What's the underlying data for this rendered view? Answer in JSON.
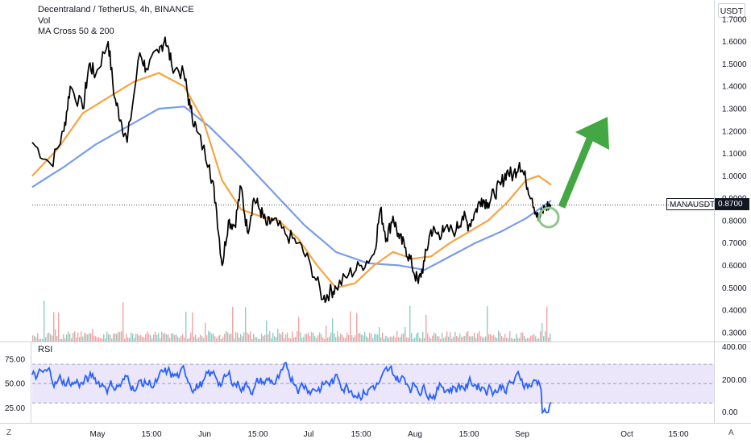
{
  "legend": {
    "title": "Decentraland / TetherUS, 4h, BINANCE",
    "vol": "Vol",
    "ma": "MA Cross 50 & 200"
  },
  "currency": "USDT",
  "symbol_tag": "MANAUSDT",
  "price_tag": "0.8700",
  "rsi_label": "RSI",
  "corner_left": "Z",
  "corner_right": "A",
  "colors": {
    "price": "#000000",
    "ma50": "#f7a440",
    "ma200": "#7a9de8",
    "rsi": "#2962ff",
    "rsi_band": "#ebe6fa",
    "arrow": "#43a843",
    "circle": "#8cc88c",
    "vol_up": "#8fcdc4",
    "vol_down": "#f2a3a3"
  },
  "chart_data": [
    {
      "type": "line",
      "title": "Decentraland / TetherUS, 4h, BINANCE",
      "x_ticks": [
        "May",
        "15:00",
        "Jun",
        "15:00",
        "Jul",
        "15:00",
        "Aug",
        "15:00",
        "Sep",
        "Oct",
        "15:00"
      ],
      "y_ticks": [
        "0.3000",
        "0.4000",
        "0.5000",
        "0.6000",
        "0.7000",
        "0.8000",
        "0.9000",
        "1.0000",
        "1.1000",
        "1.2000",
        "1.3000",
        "1.4000",
        "1.5000",
        "1.6000",
        "1.7000"
      ],
      "ylim": [
        0.26,
        1.75
      ],
      "last_price": 0.87,
      "series": [
        {
          "name": "MANAUSDT",
          "points": [
            [
              0,
              1.15
            ],
            [
              3,
              1.05
            ],
            [
              5,
              1.2
            ],
            [
              6,
              1.4
            ],
            [
              8,
              1.3
            ],
            [
              9,
              1.5
            ],
            [
              10,
              1.45
            ],
            [
              12,
              1.6
            ],
            [
              13,
              1.35
            ],
            [
              14,
              1.25
            ],
            [
              15,
              1.15
            ],
            [
              17,
              1.55
            ],
            [
              18,
              1.48
            ],
            [
              20,
              1.55
            ],
            [
              21,
              1.62
            ],
            [
              22,
              1.5
            ],
            [
              24,
              1.45
            ],
            [
              25,
              1.3
            ],
            [
              26,
              1.2
            ],
            [
              28,
              1.05
            ],
            [
              29,
              0.88
            ],
            [
              30,
              0.6
            ],
            [
              31,
              0.8
            ],
            [
              32,
              0.78
            ],
            [
              33,
              0.95
            ],
            [
              34,
              0.75
            ],
            [
              35,
              0.9
            ],
            [
              36,
              0.85
            ],
            [
              37,
              0.78
            ],
            [
              38,
              0.8
            ],
            [
              40,
              0.74
            ],
            [
              42,
              0.7
            ],
            [
              44,
              0.6
            ],
            [
              46,
              0.45
            ],
            [
              47,
              0.48
            ],
            [
              48,
              0.5
            ],
            [
              50,
              0.56
            ],
            [
              52,
              0.6
            ],
            [
              54,
              0.65
            ],
            [
              55,
              0.85
            ],
            [
              56,
              0.72
            ],
            [
              57,
              0.82
            ],
            [
              58,
              0.72
            ],
            [
              59,
              0.68
            ],
            [
              60,
              0.6
            ],
            [
              61,
              0.52
            ],
            [
              62,
              0.62
            ],
            [
              63,
              0.76
            ],
            [
              64,
              0.74
            ],
            [
              65,
              0.75
            ],
            [
              67,
              0.76
            ],
            [
              68,
              0.82
            ],
            [
              69,
              0.78
            ],
            [
              70,
              0.84
            ],
            [
              71,
              0.9
            ],
            [
              72,
              0.88
            ],
            [
              73,
              0.92
            ],
            [
              74,
              0.96
            ],
            [
              75,
              1.02
            ],
            [
              76,
              1.0
            ],
            [
              77,
              1.06
            ],
            [
              78,
              0.98
            ],
            [
              79,
              0.9
            ],
            [
              80,
              0.8
            ],
            [
              81,
              0.86
            ],
            [
              82,
              0.87
            ]
          ]
        },
        {
          "name": "MA50",
          "points": [
            [
              0,
              1.0
            ],
            [
              4,
              1.12
            ],
            [
              8,
              1.28
            ],
            [
              12,
              1.35
            ],
            [
              16,
              1.42
            ],
            [
              20,
              1.46
            ],
            [
              24,
              1.4
            ],
            [
              27,
              1.25
            ],
            [
              30,
              0.98
            ],
            [
              33,
              0.85
            ],
            [
              36,
              0.82
            ],
            [
              39,
              0.8
            ],
            [
              42,
              0.72
            ],
            [
              45,
              0.6
            ],
            [
              48,
              0.5
            ],
            [
              51,
              0.52
            ],
            [
              54,
              0.6
            ],
            [
              57,
              0.66
            ],
            [
              60,
              0.63
            ],
            [
              63,
              0.64
            ],
            [
              66,
              0.7
            ],
            [
              69,
              0.75
            ],
            [
              72,
              0.8
            ],
            [
              75,
              0.88
            ],
            [
              78,
              0.98
            ],
            [
              80,
              1.0
            ],
            [
              82,
              0.96
            ]
          ]
        },
        {
          "name": "MA200",
          "points": [
            [
              0,
              0.95
            ],
            [
              5,
              1.04
            ],
            [
              10,
              1.14
            ],
            [
              15,
              1.22
            ],
            [
              20,
              1.3
            ],
            [
              24,
              1.31
            ],
            [
              28,
              1.22
            ],
            [
              33,
              1.08
            ],
            [
              38,
              0.93
            ],
            [
              43,
              0.78
            ],
            [
              48,
              0.66
            ],
            [
              53,
              0.61
            ],
            [
              58,
              0.6
            ],
            [
              62,
              0.58
            ],
            [
              66,
              0.64
            ],
            [
              70,
              0.7
            ],
            [
              74,
              0.75
            ],
            [
              78,
              0.81
            ],
            [
              82,
              0.89
            ]
          ]
        }
      ]
    },
    {
      "type": "line",
      "title": "RSI",
      "y_ticks": [
        "25.00",
        "50.00",
        "75.00"
      ],
      "right_ticks": [
        "0.00",
        "200.00",
        "400.00"
      ],
      "ylim": [
        12,
        90
      ],
      "band": [
        30,
        70
      ]
    }
  ]
}
